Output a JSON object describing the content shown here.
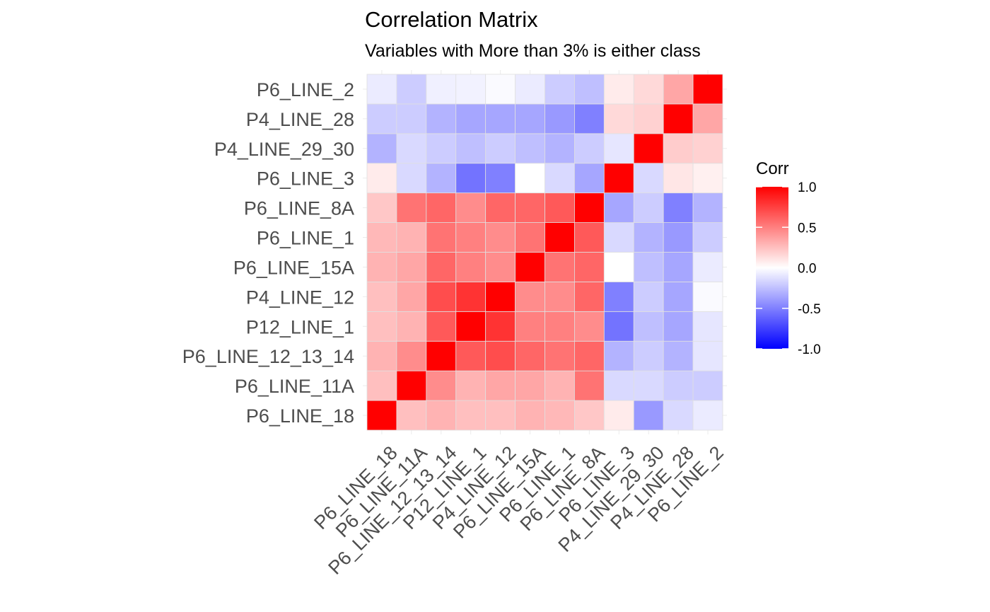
{
  "chart_data": {
    "type": "heatmap",
    "title": "Correlation Matrix",
    "subtitle": "Variables with More than 3% is either class",
    "variables": [
      "P6_LINE_18",
      "P6_LINE_11A",
      "P6_LINE_12_13_14",
      "P12_LINE_1",
      "P4_LINE_12",
      "P6_LINE_15A",
      "P6_LINE_1",
      "P6_LINE_8A",
      "P6_LINE_3",
      "P4_LINE_29_30",
      "P4_LINE_28",
      "P6_LINE_2"
    ],
    "matrix": [
      [
        1.0,
        0.25,
        0.3,
        0.25,
        0.25,
        0.3,
        0.28,
        0.22,
        0.08,
        -0.4,
        -0.15,
        -0.08
      ],
      [
        0.25,
        1.0,
        0.45,
        0.3,
        0.35,
        0.35,
        0.3,
        0.55,
        -0.15,
        -0.15,
        -0.2,
        -0.2
      ],
      [
        0.3,
        0.45,
        1.0,
        0.65,
        0.7,
        0.6,
        0.55,
        0.6,
        -0.3,
        -0.2,
        -0.3,
        -0.1
      ],
      [
        0.25,
        0.3,
        0.65,
        1.0,
        0.8,
        0.5,
        0.5,
        0.45,
        -0.55,
        -0.25,
        -0.35,
        -0.1
      ],
      [
        0.25,
        0.35,
        0.7,
        0.8,
        1.0,
        0.45,
        0.45,
        0.6,
        -0.5,
        -0.2,
        -0.35,
        -0.02
      ],
      [
        0.3,
        0.35,
        0.6,
        0.5,
        0.45,
        1.0,
        0.55,
        0.6,
        0.0,
        -0.25,
        -0.35,
        -0.08
      ],
      [
        0.28,
        0.3,
        0.55,
        0.5,
        0.45,
        0.55,
        1.0,
        0.65,
        -0.15,
        -0.3,
        -0.4,
        -0.2
      ],
      [
        0.22,
        0.55,
        0.6,
        0.45,
        0.6,
        0.6,
        0.65,
        1.0,
        -0.35,
        -0.2,
        -0.5,
        -0.3
      ],
      [
        0.08,
        -0.15,
        -0.3,
        -0.55,
        -0.5,
        0.0,
        -0.15,
        -0.35,
        1.0,
        -0.15,
        0.1,
        0.06
      ],
      [
        -0.3,
        -0.15,
        -0.2,
        -0.25,
        -0.2,
        -0.25,
        -0.3,
        -0.2,
        -0.1,
        1.0,
        0.2,
        0.18
      ],
      [
        -0.2,
        -0.2,
        -0.3,
        -0.35,
        -0.35,
        -0.35,
        -0.4,
        -0.5,
        0.15,
        0.18,
        1.0,
        0.35
      ],
      [
        -0.08,
        -0.2,
        -0.06,
        -0.05,
        -0.02,
        -0.08,
        -0.2,
        -0.25,
        0.08,
        0.15,
        0.35,
        1.0
      ]
    ],
    "legend": {
      "title": "Corr",
      "ticks": [
        1.0,
        0.5,
        0.0,
        -0.5,
        -1.0
      ],
      "tick_labels": [
        "1.0",
        "0.5",
        "0.0",
        "-0.5",
        "-1.0"
      ],
      "low_color": "#0000FF",
      "mid_color": "#FFFFFF",
      "high_color": "#FF0000",
      "placement": "right"
    },
    "xlim": [
      -1,
      1
    ],
    "grid": true
  }
}
